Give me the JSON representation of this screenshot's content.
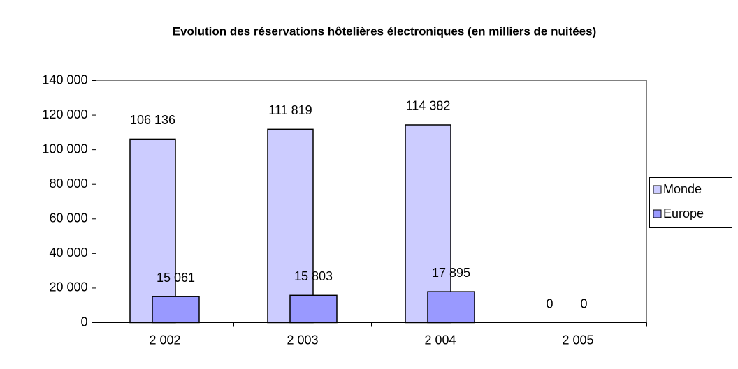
{
  "chart_data": {
    "type": "bar",
    "title": "Evolution des réservations hôtelières électroniques (en milliers de nuitées)",
    "categories": [
      "2 002",
      "2 003",
      "2 004",
      "2 005"
    ],
    "series": [
      {
        "name": "Monde",
        "color": "#ccccff",
        "values": [
          106136,
          111819,
          114382,
          0
        ],
        "value_labels": [
          "106 136",
          "111 819",
          "114 382",
          "0"
        ]
      },
      {
        "name": "Europe",
        "color": "#9999ff",
        "values": [
          15061,
          15803,
          17895,
          0
        ],
        "value_labels": [
          "15 061",
          "15 803",
          "17 895",
          "0"
        ]
      }
    ],
    "ylim": [
      0,
      140000
    ],
    "yticks": [
      0,
      {
        "value": 20000,
        "label": "20 000"
      },
      {
        "value": 40000,
        "label": "40 000"
      },
      {
        "value": 60000,
        "label": "60 000"
      },
      {
        "value": 80000,
        "label": "80 000"
      },
      {
        "value": 100000,
        "label": "100 000"
      },
      {
        "value": 120000,
        "label": "120 000"
      },
      {
        "value": 140000,
        "label": "140 000"
      }
    ],
    "grid": false,
    "legend": "right"
  }
}
